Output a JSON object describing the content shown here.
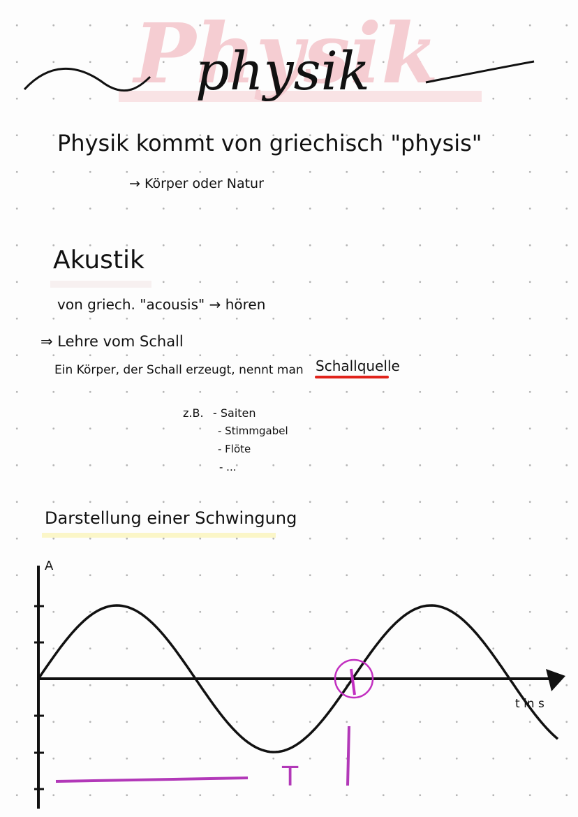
{
  "header": {
    "watermark": "Physik",
    "title": "physik"
  },
  "intro": {
    "line": "Physik kommt von griechisch \"physis\"",
    "sub": "→ Körper oder Natur"
  },
  "akustik": {
    "heading": "Akustik",
    "origin": "von griech. \"acousis\" → hören",
    "lehre": "⇒ Lehre vom Schall",
    "definition": "Ein Körper, der Schall erzeugt, nennt man",
    "term": "Schallquelle",
    "examples": {
      "label": "z.B.",
      "items": [
        "- Saiten",
        "- Stimmgabel",
        "- Flöte",
        "- ..."
      ]
    }
  },
  "graph": {
    "heading": "Darstellung einer Schwingung",
    "y_label": "A",
    "x_label": "t in s",
    "period_label": "T"
  }
}
